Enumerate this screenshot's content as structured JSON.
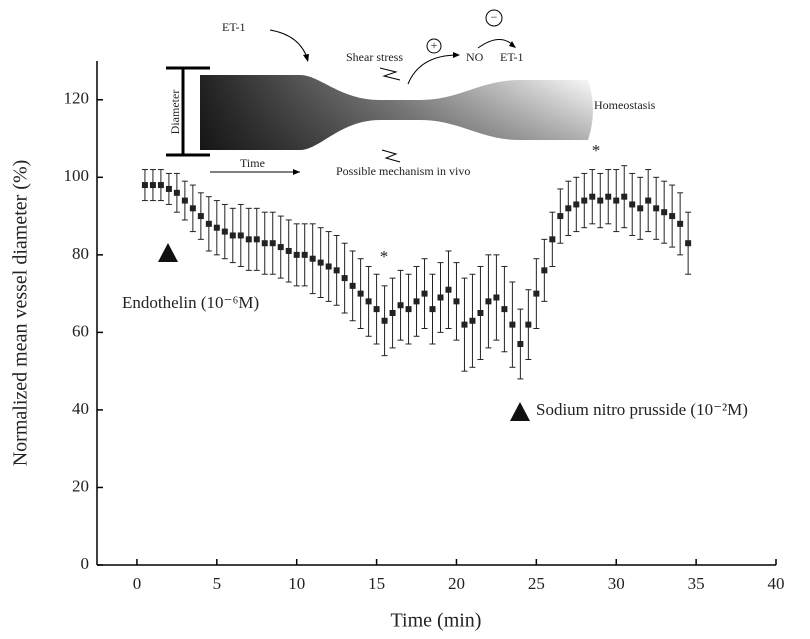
{
  "chart_data": {
    "type": "scatter",
    "xlabel": "Time (min)",
    "ylabel": "Normalized mean vessel diameter (%)",
    "xlim": [
      -2.5,
      40
    ],
    "ylim": [
      0,
      130
    ],
    "xticks": [
      0,
      5,
      10,
      15,
      20,
      25,
      30,
      35,
      40
    ],
    "yticks": [
      0,
      20,
      40,
      60,
      80,
      100,
      120
    ],
    "series": [
      {
        "color": "#222222",
        "x": [
          0.5,
          1,
          1.5,
          2,
          2.5,
          3,
          3.5,
          4,
          4.5,
          5,
          5.5,
          6,
          6.5,
          7,
          7.5,
          8,
          8.5,
          9,
          9.5,
          10,
          10.5,
          11,
          11.5,
          12,
          12.5,
          13,
          13.5,
          14,
          14.5,
          15,
          15.5,
          16,
          16.5,
          17,
          17.5,
          18,
          18.5,
          19,
          19.5,
          20,
          20.5,
          21,
          21.5,
          22,
          22.5,
          23,
          23.5,
          24,
          24.5,
          25,
          25.5,
          26,
          26.5,
          27,
          27.5,
          28,
          28.5,
          29,
          29.5,
          30,
          30.5,
          31,
          31.5,
          32,
          32.5,
          33,
          33.5,
          34,
          34.5
        ],
        "values": [
          98,
          98,
          98,
          97,
          96,
          94,
          92,
          90,
          88,
          87,
          86,
          85,
          85,
          84,
          84,
          83,
          83,
          82,
          81,
          80,
          80,
          79,
          78,
          77,
          76,
          74,
          72,
          70,
          68,
          66,
          63,
          65,
          67,
          66,
          68,
          70,
          66,
          69,
          71,
          68,
          62,
          63,
          65,
          68,
          69,
          66,
          62,
          57,
          62,
          70,
          76,
          84,
          90,
          92,
          93,
          94,
          95,
          94,
          95,
          94,
          95,
          93,
          92,
          94,
          92,
          91,
          90,
          88,
          83
        ],
        "errors": [
          4,
          4,
          4,
          4,
          5,
          5,
          6,
          6,
          7,
          7,
          7,
          7,
          8,
          8,
          8,
          8,
          8,
          8,
          8,
          8,
          8,
          9,
          9,
          9,
          9,
          9,
          9,
          9,
          9,
          9,
          9,
          9,
          9,
          9,
          9,
          9,
          9,
          9,
          10,
          10,
          12,
          12,
          12,
          12,
          11,
          11,
          11,
          9,
          9,
          9,
          8,
          7,
          7,
          7,
          7,
          7,
          7,
          7,
          7,
          8,
          8,
          8,
          8,
          8,
          8,
          8,
          8,
          8,
          8
        ]
      }
    ],
    "annotations": [
      "*",
      "*",
      "Endothelin  (10⁻⁶M)",
      "Sodium nitro prusside (10⁻²M)"
    ],
    "inset": {
      "et1_in": "ET-1",
      "shear": "Shear stress",
      "plus": "+",
      "no": "NO",
      "minus": "−",
      "et1_out": "ET-1",
      "homeostasis": "Homeostasis",
      "diameter": "Diameter",
      "time": "Time",
      "mechanism": "Possible mechanism in vivo"
    }
  }
}
